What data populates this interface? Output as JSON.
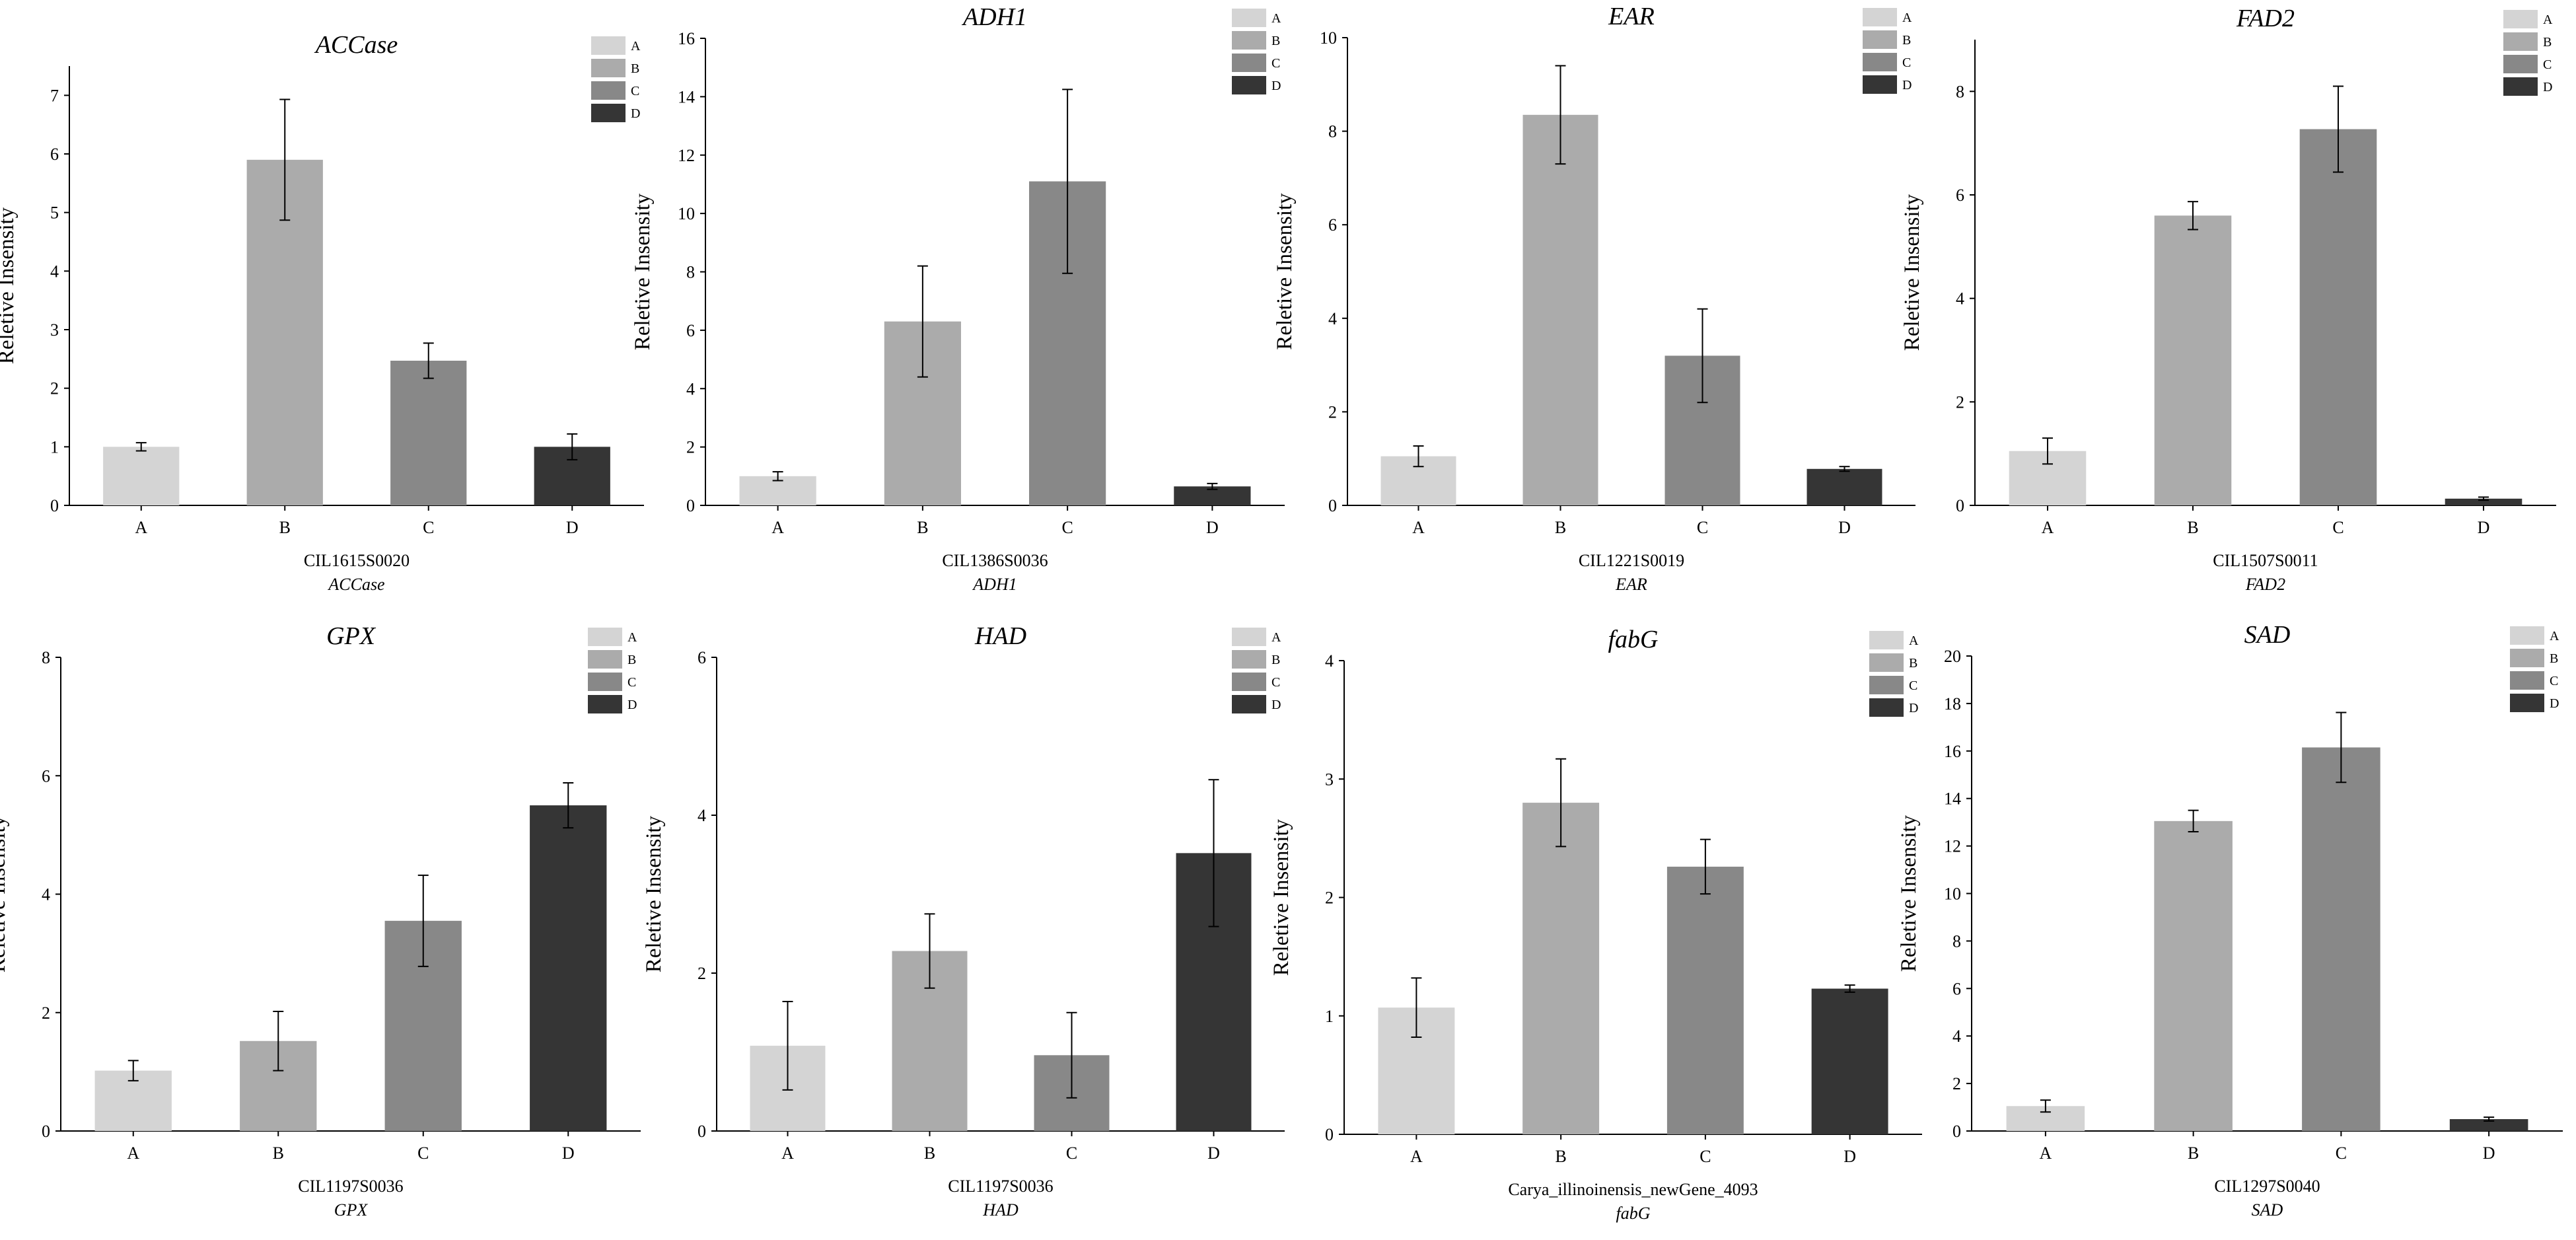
{
  "figure": {
    "bar_colors": [
      "#d4d4d4",
      "#ababab",
      "#888888",
      "#353535"
    ],
    "axis_color": "#000000"
  },
  "chart_data": [
    {
      "type": "bar",
      "title": "ACCase",
      "gene_id": "CIL1615S0020",
      "gene_name": "ACCase",
      "ylabel": "Reletive Insensity",
      "categories": [
        "A",
        "B",
        "C",
        "D"
      ],
      "legend": [
        "A",
        "B",
        "C",
        "D"
      ],
      "values": [
        1.0,
        5.9,
        2.47,
        1.0
      ],
      "errors": [
        0.07,
        1.03,
        0.3,
        0.22
      ],
      "ylim": [
        0,
        7.5
      ],
      "yticks": [
        0,
        1,
        2,
        3,
        4,
        5,
        6,
        7
      ]
    },
    {
      "type": "bar",
      "title": "ADH1",
      "gene_id": "CIL1386S0036",
      "gene_name": "ADH1",
      "ylabel": "Reletive Insensity",
      "categories": [
        "A",
        "B",
        "C",
        "D"
      ],
      "legend": [
        "A",
        "B",
        "C",
        "D"
      ],
      "values": [
        1.0,
        6.3,
        11.1,
        0.65
      ],
      "errors": [
        0.15,
        1.9,
        3.15,
        0.1
      ],
      "ylim": [
        0,
        16
      ],
      "yticks": [
        0,
        2,
        4,
        6,
        8,
        10,
        12,
        14,
        16
      ]
    },
    {
      "type": "bar",
      "title": "EAR",
      "gene_id": "CIL1221S0019",
      "gene_name": "EAR",
      "ylabel": "Reletive Insensity",
      "categories": [
        "A",
        "B",
        "C",
        "D"
      ],
      "legend": [
        "A",
        "B",
        "C",
        "D"
      ],
      "values": [
        1.05,
        8.35,
        3.2,
        0.78
      ],
      "errors": [
        0.22,
        1.05,
        1.0,
        0.05
      ],
      "ylim": [
        0,
        10
      ],
      "yticks": [
        0,
        2,
        4,
        6,
        8,
        10
      ]
    },
    {
      "type": "bar",
      "title": "FAD2",
      "gene_id": "CIL1507S0011",
      "gene_name": "FAD2",
      "ylabel": "Reletive Insensity",
      "categories": [
        "A",
        "B",
        "C",
        "D"
      ],
      "legend": [
        "A",
        "B",
        "C",
        "D"
      ],
      "values": [
        1.05,
        5.6,
        7.27,
        0.13
      ],
      "errors": [
        0.25,
        0.27,
        0.83,
        0.03
      ],
      "ylim": [
        0,
        9
      ],
      "yticks": [
        0,
        2,
        4,
        6,
        8
      ]
    },
    {
      "type": "bar",
      "title": "GPX",
      "gene_id": "CIL1197S0036",
      "gene_name": "GPX",
      "ylabel": "Reletive Insensity",
      "categories": [
        "A",
        "B",
        "C",
        "D"
      ],
      "legend": [
        "A",
        "B",
        "C",
        "D"
      ],
      "values": [
        1.02,
        1.52,
        3.55,
        5.5
      ],
      "errors": [
        0.17,
        0.5,
        0.77,
        0.38
      ],
      "ylim": [
        0,
        8
      ],
      "yticks": [
        0,
        2,
        4,
        6,
        8
      ]
    },
    {
      "type": "bar",
      "title": "HAD",
      "gene_id": "CIL1197S0036",
      "gene_name": "HAD",
      "ylabel": "Reletive Insensity",
      "categories": [
        "A",
        "B",
        "C",
        "D"
      ],
      "legend": [
        "A",
        "B",
        "C",
        "D"
      ],
      "values": [
        1.08,
        2.28,
        0.96,
        3.52
      ],
      "errors": [
        0.56,
        0.47,
        0.54,
        0.93
      ],
      "ylim": [
        0,
        6
      ],
      "yticks": [
        0,
        2,
        4,
        6
      ]
    },
    {
      "type": "bar",
      "title": "fabG",
      "gene_id": "Carya_illinoinensis_newGene_4093",
      "gene_name": "fabG",
      "ylabel": "Reletive Insensity",
      "categories": [
        "A",
        "B",
        "C",
        "D"
      ],
      "legend": [
        "A",
        "B",
        "C",
        "D"
      ],
      "values": [
        1.07,
        2.8,
        2.26,
        1.23
      ],
      "errors": [
        0.25,
        0.37,
        0.23,
        0.03
      ],
      "ylim": [
        0,
        4
      ],
      "yticks": [
        0,
        1,
        2,
        3,
        4
      ]
    },
    {
      "type": "bar",
      "title": "SAD",
      "gene_id": "CIL1297S0040",
      "gene_name": "SAD",
      "ylabel": "Reletive Insensity",
      "categories": [
        "A",
        "B",
        "C",
        "D"
      ],
      "legend": [
        "A",
        "B",
        "C",
        "D"
      ],
      "values": [
        1.05,
        13.05,
        16.15,
        0.5
      ],
      "errors": [
        0.25,
        0.45,
        1.47,
        0.08
      ],
      "ylim": [
        0,
        20
      ],
      "yticks": [
        0,
        2,
        4,
        6,
        8,
        10,
        12,
        14,
        16,
        18,
        20
      ]
    }
  ]
}
